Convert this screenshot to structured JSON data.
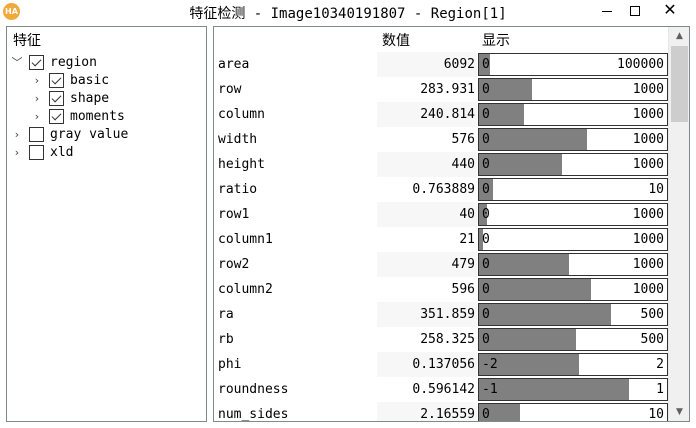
{
  "window": {
    "title": "特征检测 - Image10340191807 - Region[1]",
    "app_icon_text": "HA",
    "minimize_icon": "minimize-icon",
    "maximize_icon": "maximize-icon",
    "close_symbol": "✕"
  },
  "tree": {
    "header": "特征",
    "items": [
      {
        "label": "region",
        "expanded": true,
        "checked": true,
        "arrow": "﹀"
      },
      {
        "label": "basic",
        "expanded": false,
        "checked": true,
        "arrow": "›"
      },
      {
        "label": "shape",
        "expanded": false,
        "checked": true,
        "arrow": "›"
      },
      {
        "label": "moments",
        "expanded": false,
        "checked": true,
        "arrow": "›"
      },
      {
        "label": "gray value",
        "expanded": false,
        "checked": false,
        "arrow": "›"
      },
      {
        "label": "xld",
        "expanded": false,
        "checked": false,
        "arrow": "›"
      }
    ]
  },
  "table": {
    "headers": {
      "value": "数值",
      "display": "显示"
    },
    "rows": [
      {
        "name": "area",
        "value": "6092",
        "min": "0",
        "max": "100000",
        "fill": 0.061
      },
      {
        "name": "row",
        "value": "283.931",
        "min": "0",
        "max": "1000",
        "fill": 0.284
      },
      {
        "name": "column",
        "value": "240.814",
        "min": "0",
        "max": "1000",
        "fill": 0.241
      },
      {
        "name": "width",
        "value": "576",
        "min": "0",
        "max": "1000",
        "fill": 0.576
      },
      {
        "name": "height",
        "value": "440",
        "min": "0",
        "max": "1000",
        "fill": 0.44
      },
      {
        "name": "ratio",
        "value": "0.763889",
        "min": "0",
        "max": "10",
        "fill": 0.076
      },
      {
        "name": "row1",
        "value": "40",
        "min": "0",
        "max": "1000",
        "fill": 0.04
      },
      {
        "name": "column1",
        "value": "21",
        "min": "0",
        "max": "1000",
        "fill": 0.021
      },
      {
        "name": "row2",
        "value": "479",
        "min": "0",
        "max": "1000",
        "fill": 0.479
      },
      {
        "name": "column2",
        "value": "596",
        "min": "0",
        "max": "1000",
        "fill": 0.596
      },
      {
        "name": "ra",
        "value": "351.859",
        "min": "0",
        "max": "500",
        "fill": 0.704
      },
      {
        "name": "rb",
        "value": "258.325",
        "min": "0",
        "max": "500",
        "fill": 0.517
      },
      {
        "name": "phi",
        "value": "0.137056",
        "min": "-2",
        "max": "2",
        "fill": 0.534
      },
      {
        "name": "roundness",
        "value": "0.596142",
        "min": "-1",
        "max": "1",
        "fill": 0.798
      },
      {
        "name": "num_sides",
        "value": "2.16559",
        "min": "0",
        "max": "10",
        "fill": 0.217
      }
    ]
  },
  "scrollbar": {
    "up_symbol": "▲",
    "down_symbol": "▼",
    "position": 0.0
  }
}
